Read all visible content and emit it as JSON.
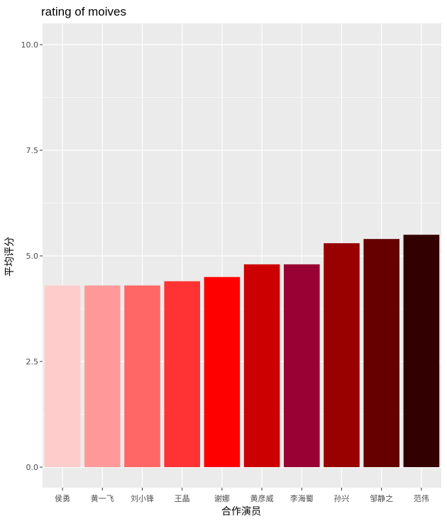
{
  "chart_data": {
    "type": "bar",
    "title": "rating of moives",
    "xlabel": "合作演员",
    "ylabel": "平均评分",
    "categories": [
      "侯勇",
      "黄一飞",
      "刘小锋",
      "王晶",
      "谢娜",
      "黄彦威",
      "李海蜀",
      "孙兴",
      "邹静之",
      "范伟"
    ],
    "values": [
      4.3,
      4.3,
      4.3,
      4.4,
      4.5,
      4.8,
      4.8,
      5.3,
      5.4,
      5.5
    ],
    "colors": [
      "#ffcccc",
      "#ff9999",
      "#ff6666",
      "#ff3333",
      "#ff0000",
      "#cc0000",
      "#990033",
      "#990000",
      "#660000",
      "#330000"
    ],
    "ylim": [
      0,
      10.4
    ],
    "yticks": [
      "0.0",
      "2.5",
      "5.0",
      "7.5",
      "10.0"
    ],
    "ytick_values": [
      0,
      2.5,
      5,
      7.5,
      10
    ],
    "grid": true,
    "panel_background": "#ebebeb",
    "legend": "none"
  }
}
